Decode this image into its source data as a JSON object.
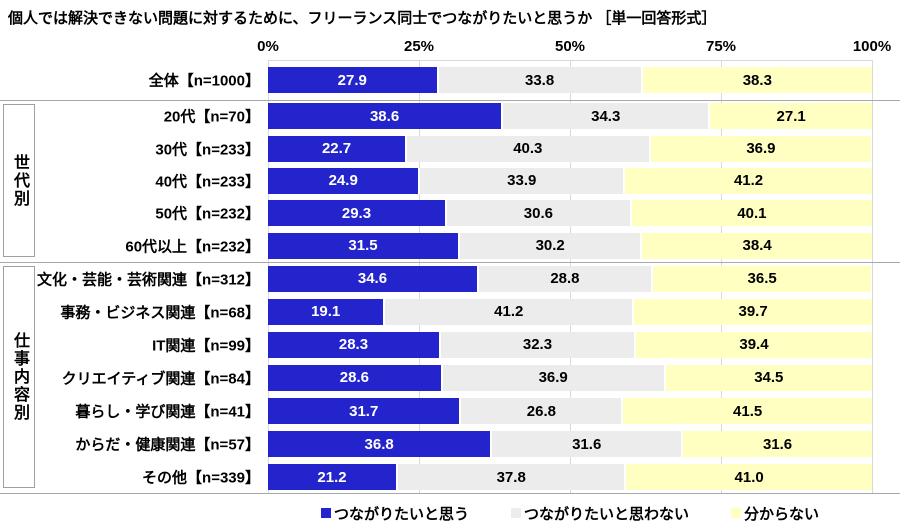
{
  "chart_data": {
    "type": "bar",
    "subtype": "horizontal-stacked",
    "title": "個人では解決できない問題に対するために、フリーランス同士でつながりたいと思うか ［単一回答形式］",
    "x_ticks": [
      "0%",
      "25%",
      "50%",
      "75%",
      "100%"
    ],
    "xlim": [
      0,
      100
    ],
    "grid": "vertical",
    "legend_position": "bottom",
    "categories": [
      "全体【n=1000】",
      "20代【n=70】",
      "30代【n=233】",
      "40代【n=233】",
      "50代【n=232】",
      "60代以上【n=232】",
      "文化・芸能・芸術関連【n=312】",
      "事務・ビジネス関連【n=68】",
      "IT関連【n=99】",
      "クリエイティブ関連【n=84】",
      "暮らし・学び関連【n=41】",
      "からだ・健康関連【n=57】",
      "その他【n=339】"
    ],
    "row_groups": [
      {
        "label": "",
        "rows": [
          0
        ]
      },
      {
        "label": "世代別",
        "rows": [
          1,
          2,
          3,
          4,
          5
        ]
      },
      {
        "label": "仕事内容別",
        "rows": [
          6,
          7,
          8,
          9,
          10,
          11,
          12
        ]
      }
    ],
    "series": [
      {
        "name": "つながりたいと思う",
        "color": "#2424cc",
        "text_color": "#ffffff",
        "values": [
          27.9,
          38.6,
          22.7,
          24.9,
          29.3,
          31.5,
          34.6,
          19.1,
          28.3,
          28.6,
          31.7,
          36.8,
          21.2
        ]
      },
      {
        "name": "つながりたいと思わない",
        "color": "#ececec",
        "text_color": "#000000",
        "values": [
          33.8,
          34.3,
          40.3,
          33.9,
          30.6,
          30.2,
          28.8,
          41.2,
          32.3,
          36.9,
          26.8,
          31.6,
          37.8
        ]
      },
      {
        "name": "分からない",
        "color": "#ffffc2",
        "text_color": "#000000",
        "values": [
          38.3,
          27.1,
          36.9,
          41.2,
          40.1,
          38.4,
          36.5,
          39.7,
          39.4,
          34.5,
          41.5,
          31.6,
          41.0
        ]
      }
    ]
  }
}
